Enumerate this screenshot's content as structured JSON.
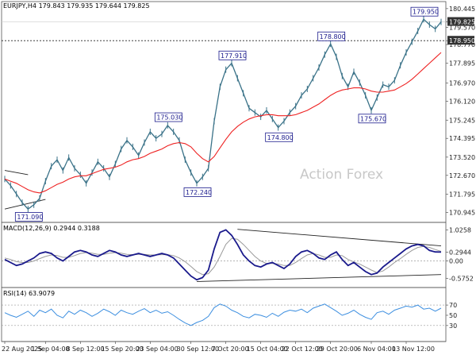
{
  "chart_data": [
    {
      "type": "line",
      "panel": "price",
      "header": {
        "symbol": "EURJPY,H4",
        "open": "179.843",
        "high": "179.935",
        "low": "179.644",
        "close": "179.825"
      },
      "watermark": "Action Forex",
      "y_ticks": [
        "180.445",
        "179.825",
        "179.570",
        "178.950",
        "178.770",
        "177.895",
        "176.970",
        "176.120",
        "175.245",
        "174.395",
        "173.520",
        "172.670",
        "171.795",
        "170.945"
      ],
      "ylim": [
        170.7,
        180.55
      ],
      "price_tag": "179.825",
      "level_tag": "178.950",
      "level_value": 178.95,
      "series": [
        {
          "name": "EURJPY",
          "color": "#3a7288",
          "values": [
            172.5,
            172.2,
            171.8,
            171.4,
            171.1,
            171.3,
            171.6,
            172.4,
            173.1,
            173.4,
            172.9,
            173.5,
            173.0,
            172.7,
            172.3,
            172.8,
            173.3,
            173.0,
            172.6,
            173.2,
            173.9,
            174.3,
            174.0,
            173.6,
            174.2,
            174.7,
            174.4,
            174.6,
            175.0,
            174.7,
            174.3,
            173.4,
            172.8,
            172.3,
            172.6,
            173.0,
            175.2,
            176.8,
            177.6,
            177.9,
            177.2,
            176.5,
            175.8,
            175.6,
            175.4,
            175.7,
            175.3,
            174.9,
            175.2,
            175.6,
            175.9,
            176.4,
            176.7,
            177.2,
            177.7,
            178.3,
            178.8,
            178.2,
            177.3,
            176.8,
            177.5,
            177.0,
            176.4,
            175.7,
            176.3,
            176.9,
            176.8,
            177.1,
            177.8,
            178.4,
            178.9,
            179.4,
            179.95,
            179.7,
            179.5,
            179.825
          ]
        },
        {
          "name": "MA",
          "color": "#ee2222",
          "values": [
            172.5,
            172.4,
            172.3,
            172.15,
            172.0,
            171.9,
            171.85,
            171.95,
            172.1,
            172.25,
            172.35,
            172.5,
            172.6,
            172.65,
            172.65,
            172.75,
            172.85,
            172.95,
            173.0,
            173.05,
            173.15,
            173.3,
            173.4,
            173.45,
            173.55,
            173.7,
            173.8,
            173.9,
            174.05,
            174.15,
            174.2,
            174.15,
            174.0,
            173.7,
            173.45,
            173.3,
            173.55,
            173.95,
            174.35,
            174.7,
            174.95,
            175.15,
            175.3,
            175.4,
            175.45,
            175.5,
            175.5,
            175.45,
            175.45,
            175.45,
            175.5,
            175.6,
            175.7,
            175.85,
            176.0,
            176.2,
            176.4,
            176.55,
            176.65,
            176.7,
            176.75,
            176.75,
            176.7,
            176.6,
            176.55,
            176.55,
            176.6,
            176.65,
            176.8,
            176.95,
            177.15,
            177.4,
            177.65,
            177.9,
            178.15,
            178.4
          ]
        }
      ],
      "annotations": [
        {
          "label": "171.090",
          "index": 4,
          "value": 171.09,
          "side": "below"
        },
        {
          "label": "175.030",
          "index": 28,
          "value": 175.03,
          "side": "above"
        },
        {
          "label": "172.240",
          "index": 33,
          "value": 172.24,
          "side": "below"
        },
        {
          "label": "177.910",
          "index": 39,
          "value": 177.91,
          "side": "above"
        },
        {
          "label": "174.800",
          "index": 47,
          "value": 174.8,
          "side": "below"
        },
        {
          "label": "178.800",
          "index": 56,
          "value": 178.8,
          "side": "above"
        },
        {
          "label": "175.670",
          "index": 63,
          "value": 175.67,
          "side": "below"
        },
        {
          "label": "179.950",
          "index": 72,
          "value": 179.95,
          "side": "above"
        }
      ],
      "trendlines": [
        {
          "from": [
            0,
            172.9
          ],
          "to": [
            4,
            172.7
          ]
        },
        {
          "from": [
            0,
            171.1
          ],
          "to": [
            7,
            171.55
          ]
        }
      ]
    },
    {
      "type": "line",
      "panel": "macd",
      "header": "MACD(12,26,9) 0.2944 0.3188",
      "y_ticks": [
        {
          "label": "1.0258",
          "value": 1.0258
        },
        {
          "label": "0.2944",
          "value": 0.2944
        },
        {
          "label": "0.00",
          "value": 0.0
        },
        {
          "label": "-0.5752",
          "value": -0.5752
        }
      ],
      "ylim": [
        -0.72,
        1.12
      ],
      "series": [
        {
          "name": "MACD",
          "color": "#1a1a8c",
          "values": [
            0.05,
            -0.05,
            -0.15,
            -0.1,
            0.0,
            0.1,
            0.25,
            0.3,
            0.25,
            0.1,
            0.0,
            0.15,
            0.3,
            0.35,
            0.3,
            0.2,
            0.15,
            0.25,
            0.35,
            0.3,
            0.2,
            0.15,
            0.2,
            0.25,
            0.2,
            0.15,
            0.2,
            0.25,
            0.2,
            0.1,
            -0.1,
            -0.3,
            -0.5,
            -0.62,
            -0.55,
            -0.3,
            0.4,
            0.95,
            1.03,
            0.85,
            0.55,
            0.2,
            0.0,
            -0.15,
            -0.2,
            -0.1,
            -0.05,
            -0.15,
            -0.25,
            -0.1,
            0.15,
            0.3,
            0.35,
            0.25,
            0.1,
            0.05,
            0.2,
            0.3,
            0.05,
            -0.15,
            -0.05,
            -0.2,
            -0.35,
            -0.45,
            -0.4,
            -0.2,
            -0.05,
            0.1,
            0.25,
            0.4,
            0.5,
            0.55,
            0.5,
            0.35,
            0.3,
            0.2944
          ]
        },
        {
          "name": "Signal",
          "color": "#9a9a9a",
          "values": [
            0.1,
            0.05,
            -0.02,
            -0.05,
            -0.05,
            0.0,
            0.08,
            0.15,
            0.2,
            0.18,
            0.12,
            0.12,
            0.18,
            0.25,
            0.28,
            0.26,
            0.22,
            0.22,
            0.26,
            0.28,
            0.26,
            0.22,
            0.21,
            0.22,
            0.22,
            0.2,
            0.2,
            0.21,
            0.21,
            0.18,
            0.1,
            -0.02,
            -0.18,
            -0.35,
            -0.45,
            -0.42,
            -0.2,
            0.15,
            0.55,
            0.75,
            0.72,
            0.55,
            0.35,
            0.15,
            0.0,
            -0.08,
            -0.08,
            -0.1,
            -0.15,
            -0.15,
            -0.05,
            0.08,
            0.2,
            0.25,
            0.2,
            0.12,
            0.12,
            0.2,
            0.18,
            0.05,
            -0.03,
            -0.1,
            -0.2,
            -0.3,
            -0.38,
            -0.33,
            -0.2,
            -0.05,
            0.08,
            0.22,
            0.35,
            0.45,
            0.48,
            0.45,
            0.38,
            0.3188
          ]
        }
      ],
      "trendlines": [
        {
          "from": [
            40,
            1.05
          ],
          "to": [
            75,
            0.5
          ]
        },
        {
          "from": [
            33,
            -0.68
          ],
          "to": [
            75,
            -0.45
          ]
        }
      ]
    },
    {
      "type": "line",
      "panel": "rsi",
      "header": "RSI(14) 63.9079",
      "y_ticks": [
        {
          "label": "70",
          "value": 70
        },
        {
          "label": "50",
          "value": 50
        },
        {
          "label": "30",
          "value": 30
        }
      ],
      "ylim": [
        8,
        95
      ],
      "series": [
        {
          "name": "RSI",
          "color": "#3d8fe0",
          "values": [
            55,
            50,
            46,
            52,
            58,
            48,
            60,
            55,
            62,
            50,
            45,
            58,
            52,
            60,
            55,
            48,
            54,
            62,
            57,
            50,
            60,
            55,
            52,
            58,
            63,
            55,
            60,
            54,
            57,
            50,
            42,
            35,
            30,
            36,
            40,
            48,
            65,
            72,
            68,
            60,
            55,
            48,
            45,
            52,
            50,
            46,
            54,
            48,
            56,
            60,
            58,
            62,
            55,
            64,
            68,
            72,
            65,
            58,
            50,
            54,
            60,
            52,
            46,
            42,
            55,
            58,
            52,
            60,
            64,
            68,
            66,
            70,
            62,
            64,
            58,
            63.9
          ]
        }
      ],
      "dotted_levels": [
        70,
        30
      ]
    }
  ],
  "x_axis": {
    "tick_labels": [
      {
        "label": "22 Aug 2025",
        "index": 0
      },
      {
        "label": "1 Sep 04:00",
        "index": 7
      },
      {
        "label": "8 Sep 12:00",
        "index": 13
      },
      {
        "label": "15 Sep 20:00",
        "index": 19
      },
      {
        "label": "23 Sep 04:00",
        "index": 25
      },
      {
        "label": "30 Sep 12:00",
        "index": 32
      },
      {
        "label": "7 Oct 20:00",
        "index": 38
      },
      {
        "label": "15 Oct 04:00",
        "index": 44
      },
      {
        "label": "22 Oct 12:00",
        "index": 50
      },
      {
        "label": "29 Oct 20:00",
        "index": 56
      },
      {
        "label": "6 Nov 04:00",
        "index": 63
      },
      {
        "label": "13 Nov 12:00",
        "index": 69
      }
    ]
  }
}
